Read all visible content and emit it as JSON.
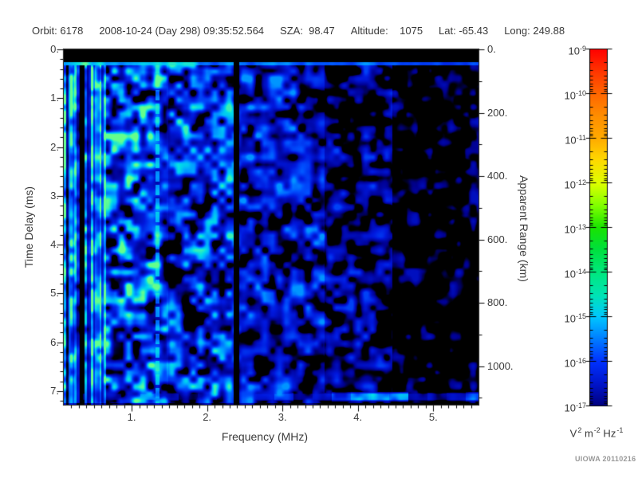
{
  "header": {
    "items": [
      {
        "text": "Orbit: 6178"
      },
      {
        "text": "2008-10-24 (Day 298) 09:35:52.564"
      },
      {
        "text": "SZA:  98.47"
      },
      {
        "text": "Altitude:    1075"
      },
      {
        "text": "Lat: -65.43"
      },
      {
        "text": "Long: 249.88"
      }
    ]
  },
  "footer": {
    "credit": "UIOWA 20110216"
  },
  "colors": {
    "background": "#ffffff",
    "text": "#3a3a3a",
    "axis": "#000000",
    "credit": "#989898",
    "plot_background": "#000000"
  },
  "chart_data": {
    "type": "heatmap",
    "subtype": "radar sounder ionogram spectrogram",
    "instrument_readout": {
      "orbit": "6178",
      "date": "2008-10-24",
      "day_of_year": "298",
      "time_utc": "09:35:52.564",
      "sza_deg": "98.47",
      "altitude_km": "1075",
      "lat_deg": "-65.43",
      "long_deg": "249.88"
    },
    "x_axis": {
      "label": "Frequency (MHz)",
      "min": 0.1,
      "max": 5.6,
      "minor_step": 0.1,
      "ticks": [
        {
          "value": 1,
          "label": "1."
        },
        {
          "value": 2,
          "label": "2."
        },
        {
          "value": 3,
          "label": "3."
        },
        {
          "value": 4,
          "label": "4."
        },
        {
          "value": 5,
          "label": "5."
        }
      ]
    },
    "y_axis_left": {
      "label": "Time Delay (ms)",
      "min": 0,
      "max": 7.28,
      "direction": "down",
      "minor_step": 0.2,
      "ticks": [
        {
          "value": 0,
          "label": "0."
        },
        {
          "value": 1,
          "label": "1."
        },
        {
          "value": 2,
          "label": "2."
        },
        {
          "value": 3,
          "label": "3."
        },
        {
          "value": 4,
          "label": "4."
        },
        {
          "value": 5,
          "label": "5."
        },
        {
          "value": 6,
          "label": "6."
        },
        {
          "value": 7,
          "label": "7."
        }
      ]
    },
    "y_axis_right": {
      "label": "Apparent Range (km)",
      "min": 0,
      "max": 1122,
      "minor_step": 100,
      "ticks": [
        {
          "value": 0,
          "label": "0."
        },
        {
          "value": 200,
          "label": "200."
        },
        {
          "value": 400,
          "label": "400."
        },
        {
          "value": 600,
          "label": "600."
        },
        {
          "value": 800,
          "label": "800."
        },
        {
          "value": 1000,
          "label": "1000."
        }
      ]
    },
    "colorbar": {
      "scale": "log10",
      "max": "1e-9",
      "min": "1e-17",
      "tick_base": "10",
      "ticks": [
        {
          "exp": "-9"
        },
        {
          "exp": "-10"
        },
        {
          "exp": "-11"
        },
        {
          "exp": "-12"
        },
        {
          "exp": "-13"
        },
        {
          "exp": "-14"
        },
        {
          "exp": "-15"
        },
        {
          "exp": "-16"
        },
        {
          "exp": "-17"
        }
      ],
      "unit_text": "V2 m-2 Hz-1",
      "unit_parts": [
        {
          "t": "V"
        },
        {
          "s": "2"
        },
        {
          "t": " m"
        },
        {
          "s": "-2"
        },
        {
          "t": " Hz"
        },
        {
          "s": "-1"
        }
      ],
      "gradient": [
        {
          "at": 0.0,
          "c": "#ff0000"
        },
        {
          "at": 0.06,
          "c": "#ff3300"
        },
        {
          "at": 0.125,
          "c": "#ff6600"
        },
        {
          "at": 0.19,
          "c": "#ff8f00"
        },
        {
          "at": 0.25,
          "c": "#ffaa00"
        },
        {
          "at": 0.31,
          "c": "#ffd800"
        },
        {
          "at": 0.375,
          "c": "#dfff00"
        },
        {
          "at": 0.44,
          "c": "#7fff00"
        },
        {
          "at": 0.5,
          "c": "#1ae400"
        },
        {
          "at": 0.56,
          "c": "#00e03c"
        },
        {
          "at": 0.625,
          "c": "#00e87d"
        },
        {
          "at": 0.69,
          "c": "#00e4b4"
        },
        {
          "at": 0.75,
          "c": "#00c8ff"
        },
        {
          "at": 0.81,
          "c": "#0080ff"
        },
        {
          "at": 0.875,
          "c": "#0032ff"
        },
        {
          "at": 0.94,
          "c": "#0014c8"
        },
        {
          "at": 1.0,
          "c": "#000080"
        }
      ]
    },
    "features": [
      {
        "name": "transmitter blanking band",
        "time_delay_ms": [
          0,
          0.25
        ],
        "frequency_MHz": [
          0.1,
          5.6
        ],
        "value": "no signal (black)"
      },
      {
        "name": "receiver turn-on line",
        "time_delay_ms": [
          0.25,
          0.31
        ],
        "frequency_MHz": [
          0.1,
          5.6
        ],
        "approx_power": "1e-14",
        "note": "thin cyan line, brightest at low frequency"
      },
      {
        "name": "low-frequency noise striations",
        "frequency_MHz": [
          0.1,
          0.66
        ],
        "time_delay_ms": [
          0.3,
          7.28
        ],
        "approx_power": "1e-16 to 1e-14",
        "note": "vertical stripes with dark lane near 0.33 MHz and bright lane near 0.17 MHz"
      },
      {
        "name": "electron plasma oscillation line",
        "frequency_MHz": [
          1.32,
          1.36
        ],
        "time_delay_ms": [
          0.3,
          7.28
        ],
        "approx_power": "1e-14",
        "note": "bright dashed cyan vertical line"
      },
      {
        "name": "interference gap",
        "frequency_MHz": [
          2.35,
          2.42
        ],
        "time_delay_ms": [
          0.25,
          7.28
        ],
        "value": "no signal (black)"
      },
      {
        "name": "diffuse background",
        "frequency_MHz": [
          0.66,
          5.6
        ],
        "time_delay_ms": [
          0.3,
          7.0
        ],
        "approx_power": "1e-16 to 1e-15",
        "note": "blue speckle dimming toward high frequency, sparse dark-blue blobs above 4.5 MHz"
      },
      {
        "name": "surface echo band",
        "time_delay_ms": [
          6.98,
          7.24
        ],
        "frequency_MHz": [
          0.9,
          5.6
        ],
        "approx_power": "1e-14 to 1e-13",
        "note": "bright green-cyan segmented horizontal band"
      }
    ],
    "render": {
      "seed": 1337,
      "cell": 9,
      "cell2": 19,
      "octave2_base": 0.28,
      "octave2_slope": 0.22,
      "regions": [
        {
          "f0": 0.1,
          "f1": 0.66,
          "gain": 1.0,
          "thresh": 0.0,
          "striped": true
        },
        {
          "f0": 0.66,
          "f1": 1.48,
          "gain": 1.07,
          "thresh": 0.0
        },
        {
          "f0": 1.48,
          "f1": 2.35,
          "gain": 0.97,
          "thresh": 0.02
        },
        {
          "f0": 2.35,
          "f1": 2.42,
          "gain": 0.06,
          "thresh": 0.3,
          "gap": true
        },
        {
          "f0": 2.42,
          "f1": 3.55,
          "gain": 0.8,
          "thresh": 0.05
        },
        {
          "f0": 3.55,
          "f1": 4.45,
          "gain": 0.7,
          "thresh": 0.1
        },
        {
          "f0": 4.45,
          "f1": 5.6,
          "gain": 0.58,
          "thresh": 0.17
        }
      ],
      "verticals": [
        {
          "f0": 0.155,
          "f1": 0.185,
          "type": "bright",
          "level": 0.72
        },
        {
          "f0": 0.31,
          "f1": 0.365,
          "type": "dark",
          "mult": 0.12
        },
        {
          "f0": 1.315,
          "f1": 1.36,
          "type": "bright",
          "level": 0.8,
          "dash_on": 13,
          "dash_off": 4
        }
      ],
      "horizontals": {
        "transmit_black_ms": [
          0,
          0.245
        ],
        "receiver_line_ms": [
          0.245,
          0.315
        ],
        "receiver_level": 0.85,
        "surface_band_ms": [
          6.98,
          7.24
        ],
        "surface_level": 0.95,
        "below_band_dim": 0.55
      },
      "colormap": [
        {
          "v": 0.0,
          "c": "#000000"
        },
        {
          "v": 0.22,
          "c": "#000000"
        },
        {
          "v": 0.3,
          "c": "#000090"
        },
        {
          "v": 0.48,
          "c": "#0018dd"
        },
        {
          "v": 0.64,
          "c": "#0050ff"
        },
        {
          "v": 0.78,
          "c": "#00a8ff"
        },
        {
          "v": 0.88,
          "c": "#00dce8"
        },
        {
          "v": 0.95,
          "c": "#3cf0b4"
        },
        {
          "v": 1.0,
          "c": "#64ff8c"
        }
      ]
    }
  }
}
